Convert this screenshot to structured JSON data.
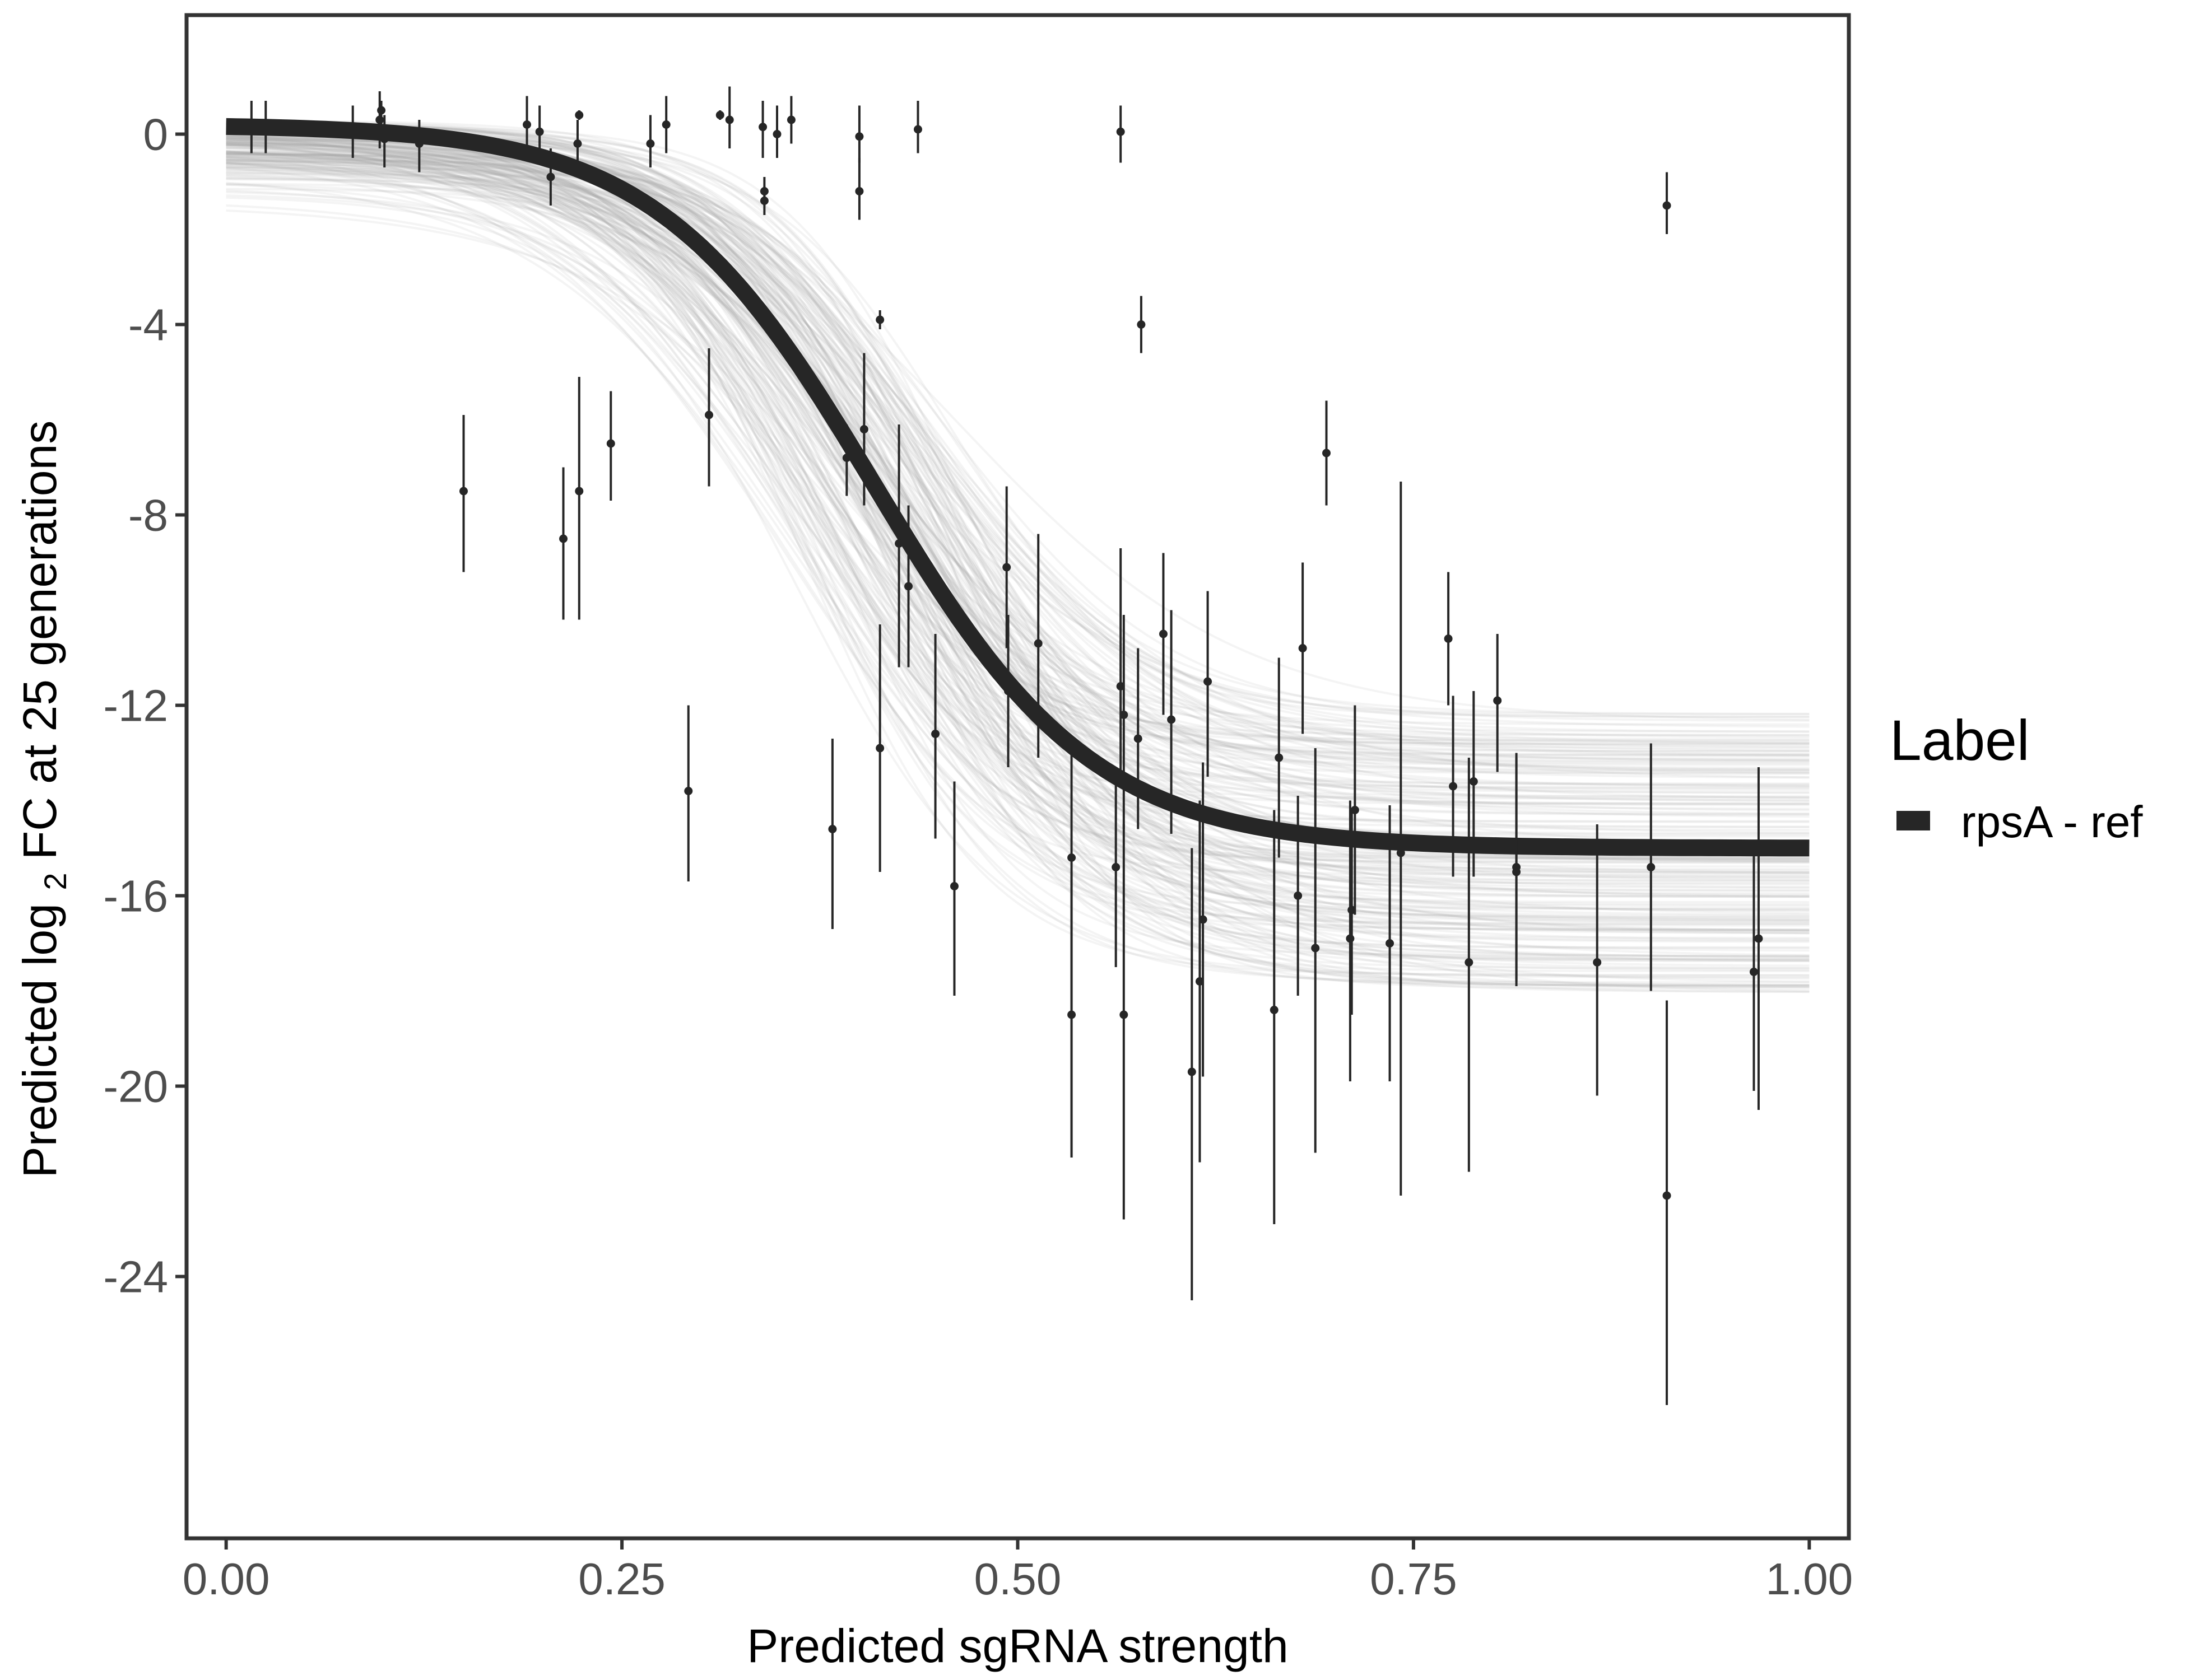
{
  "chart_data": {
    "type": "scatter",
    "xlabel": "Predicted sgRNA strength",
    "ylabel_parts": [
      "Predicted  log",
      "2",
      " FC at 25 generations"
    ],
    "xlim": [
      -0.025,
      1.025
    ],
    "ylim": [
      -29.5,
      2.5
    ],
    "x_ticks": [
      0,
      0.25,
      0.5,
      0.75,
      1
    ],
    "x_tick_labels": [
      "0.00",
      "0.25",
      "0.50",
      "0.75",
      "1.00"
    ],
    "y_ticks": [
      0,
      -4,
      -8,
      -12,
      -16,
      -20,
      -24
    ],
    "y_tick_labels": [
      "0",
      "-4",
      "-8",
      "-12",
      "-16",
      "-20",
      "-24"
    ],
    "grid": false,
    "legend": {
      "title": "Label",
      "placement": "right",
      "entries": [
        {
          "label": "rpsA - ref",
          "color": "#262626"
        }
      ]
    },
    "fit_curve": {
      "name": "rpsA - ref",
      "color": "#262626",
      "model": "logistic",
      "upper": 0.2,
      "lower": -15.0,
      "midpoint": 0.41,
      "slope": 14.5
    },
    "posterior_band": {
      "color": "#a6a6a6",
      "upper_range": [
        -1.7,
        0.3
      ],
      "lower_range": [
        -18.4,
        -11.8
      ],
      "midpoint_range": [
        0.35,
        0.47
      ],
      "slope_range": [
        11,
        19
      ]
    },
    "points": [
      {
        "x": 0.016,
        "y": 0.1,
        "lo": -0.4,
        "hi": 0.7
      },
      {
        "x": 0.025,
        "y": 0.1,
        "lo": -0.4,
        "hi": 0.7
      },
      {
        "x": 0.08,
        "y": 0.1,
        "lo": -0.5,
        "hi": 0.6
      },
      {
        "x": 0.097,
        "y": 0.3,
        "lo": -0.3,
        "hi": 0.9
      },
      {
        "x": 0.098,
        "y": 0.5,
        "lo": -0.1,
        "hi": 0.7
      },
      {
        "x": 0.1,
        "y": -0.1,
        "lo": -0.7,
        "hi": 0.4
      },
      {
        "x": 0.122,
        "y": -0.2,
        "lo": -0.8,
        "hi": 0.3
      },
      {
        "x": 0.15,
        "y": -7.5,
        "lo": -9.2,
        "hi": -5.9
      },
      {
        "x": 0.19,
        "y": 0.2,
        "lo": -0.3,
        "hi": 0.8
      },
      {
        "x": 0.198,
        "y": 0.05,
        "lo": -0.5,
        "hi": 0.6
      },
      {
        "x": 0.205,
        "y": -0.9,
        "lo": -1.5,
        "hi": -0.3
      },
      {
        "x": 0.213,
        "y": -8.5,
        "lo": -10.2,
        "hi": -7.0
      },
      {
        "x": 0.222,
        "y": -0.2,
        "lo": -0.7,
        "hi": 0.3
      },
      {
        "x": 0.223,
        "y": 0.4,
        "lo": 0.3,
        "hi": 0.5
      },
      {
        "x": 0.223,
        "y": -7.5,
        "lo": -10.2,
        "hi": -5.1
      },
      {
        "x": 0.243,
        "y": -6.5,
        "lo": -7.7,
        "hi": -5.4
      },
      {
        "x": 0.268,
        "y": -0.2,
        "lo": -0.7,
        "hi": 0.4
      },
      {
        "x": 0.278,
        "y": 0.2,
        "lo": -0.4,
        "hi": 0.8
      },
      {
        "x": 0.292,
        "y": -13.8,
        "lo": -15.7,
        "hi": -12.0
      },
      {
        "x": 0.305,
        "y": -5.9,
        "lo": -7.4,
        "hi": -4.5
      },
      {
        "x": 0.312,
        "y": 0.4,
        "lo": 0.3,
        "hi": 0.5
      },
      {
        "x": 0.318,
        "y": 0.3,
        "lo": -0.3,
        "hi": 1.0
      },
      {
        "x": 0.339,
        "y": 0.15,
        "lo": -0.5,
        "hi": 0.7
      },
      {
        "x": 0.34,
        "y": -1.2,
        "lo": -1.5,
        "hi": -0.9
      },
      {
        "x": 0.34,
        "y": -1.4,
        "lo": -1.7,
        "hi": -1.1
      },
      {
        "x": 0.348,
        "y": 0.0,
        "lo": -0.5,
        "hi": 0.6
      },
      {
        "x": 0.357,
        "y": 0.3,
        "lo": -0.2,
        "hi": 0.8
      },
      {
        "x": 0.383,
        "y": -14.6,
        "lo": -16.7,
        "hi": -12.7
      },
      {
        "x": 0.392,
        "y": -6.8,
        "lo": -7.6,
        "hi": -6.1
      },
      {
        "x": 0.4,
        "y": -0.05,
        "lo": -0.6,
        "hi": 0.6
      },
      {
        "x": 0.4,
        "y": -1.2,
        "lo": -1.8,
        "hi": -0.5
      },
      {
        "x": 0.403,
        "y": -6.2,
        "lo": -7.8,
        "hi": -4.6
      },
      {
        "x": 0.413,
        "y": -12.9,
        "lo": -15.5,
        "hi": -10.3
      },
      {
        "x": 0.413,
        "y": -3.9,
        "lo": -4.1,
        "hi": -3.7
      },
      {
        "x": 0.425,
        "y": -8.6,
        "lo": -11.2,
        "hi": -6.1
      },
      {
        "x": 0.431,
        "y": -9.5,
        "lo": -11.2,
        "hi": -7.8
      },
      {
        "x": 0.437,
        "y": 0.1,
        "lo": -0.4,
        "hi": 0.7
      },
      {
        "x": 0.448,
        "y": -12.6,
        "lo": -14.8,
        "hi": -10.5
      },
      {
        "x": 0.46,
        "y": -15.8,
        "lo": -18.1,
        "hi": -13.6
      },
      {
        "x": 0.493,
        "y": -9.1,
        "lo": -10.8,
        "hi": -7.4
      },
      {
        "x": 0.494,
        "y": -11.7,
        "lo": -13.3,
        "hi": -10.1
      },
      {
        "x": 0.513,
        "y": -10.7,
        "lo": -13.1,
        "hi": -8.4
      },
      {
        "x": 0.534,
        "y": -15.2,
        "lo": -21.5,
        "hi": -12.8
      },
      {
        "x": 0.534,
        "y": -18.5,
        "lo": -21.5,
        "hi": -15.5
      },
      {
        "x": 0.562,
        "y": -15.4,
        "lo": -17.5,
        "hi": -13.4
      },
      {
        "x": 0.565,
        "y": -11.6,
        "lo": -13.5,
        "hi": -8.7
      },
      {
        "x": 0.565,
        "y": 0.05,
        "lo": -0.6,
        "hi": 0.6
      },
      {
        "x": 0.567,
        "y": -18.5,
        "lo": -22.8,
        "hi": -14.5
      },
      {
        "x": 0.567,
        "y": -12.2,
        "lo": -14.6,
        "hi": -10.1
      },
      {
        "x": 0.576,
        "y": -12.7,
        "lo": -14.6,
        "hi": -10.8
      },
      {
        "x": 0.578,
        "y": -4.0,
        "lo": -4.6,
        "hi": -3.4
      },
      {
        "x": 0.592,
        "y": -10.5,
        "lo": -12.2,
        "hi": -8.8
      },
      {
        "x": 0.597,
        "y": -12.3,
        "lo": -14.7,
        "hi": -10.0
      },
      {
        "x": 0.61,
        "y": -19.7,
        "lo": -24.5,
        "hi": -15.0
      },
      {
        "x": 0.615,
        "y": -17.8,
        "lo": -21.6,
        "hi": -14.0
      },
      {
        "x": 0.617,
        "y": -16.5,
        "lo": -19.8,
        "hi": -13.2
      },
      {
        "x": 0.62,
        "y": -11.5,
        "lo": -13.5,
        "hi": -9.6
      },
      {
        "x": 0.662,
        "y": -18.4,
        "lo": -22.9,
        "hi": -14.2
      },
      {
        "x": 0.665,
        "y": -13.1,
        "lo": -15.2,
        "hi": -11.0
      },
      {
        "x": 0.677,
        "y": -16.0,
        "lo": -18.1,
        "hi": -13.9
      },
      {
        "x": 0.68,
        "y": -10.8,
        "lo": -12.6,
        "hi": -9.0
      },
      {
        "x": 0.688,
        "y": -17.1,
        "lo": -21.4,
        "hi": -12.9
      },
      {
        "x": 0.695,
        "y": -6.7,
        "lo": -7.8,
        "hi": -5.6
      },
      {
        "x": 0.71,
        "y": -16.9,
        "lo": -19.9,
        "hi": -14.0
      },
      {
        "x": 0.711,
        "y": -16.3,
        "lo": -18.5,
        "hi": -14.2
      },
      {
        "x": 0.713,
        "y": -14.2,
        "lo": -16.4,
        "hi": -12.0
      },
      {
        "x": 0.735,
        "y": -17.0,
        "lo": -19.9,
        "hi": -14.1
      },
      {
        "x": 0.742,
        "y": -15.1,
        "lo": -22.3,
        "hi": -7.3
      },
      {
        "x": 0.772,
        "y": -10.6,
        "lo": -12.0,
        "hi": -9.2
      },
      {
        "x": 0.775,
        "y": -13.7,
        "lo": -15.6,
        "hi": -11.8
      },
      {
        "x": 0.785,
        "y": -17.4,
        "lo": -21.8,
        "hi": -13.1
      },
      {
        "x": 0.788,
        "y": -13.6,
        "lo": -15.6,
        "hi": -11.7
      },
      {
        "x": 0.803,
        "y": -11.9,
        "lo": -13.4,
        "hi": -10.5
      },
      {
        "x": 0.815,
        "y": -15.4,
        "lo": -17.9,
        "hi": -13.0
      },
      {
        "x": 0.815,
        "y": -15.5,
        "lo": -17.8,
        "hi": -13.1
      },
      {
        "x": 0.866,
        "y": -17.4,
        "lo": -20.2,
        "hi": -14.5
      },
      {
        "x": 0.9,
        "y": -15.4,
        "lo": -18.0,
        "hi": -12.8
      },
      {
        "x": 0.91,
        "y": -1.5,
        "lo": -2.1,
        "hi": -0.8
      },
      {
        "x": 0.91,
        "y": -22.3,
        "lo": -26.7,
        "hi": -18.2
      },
      {
        "x": 0.965,
        "y": -17.6,
        "lo": -20.1,
        "hi": -15.0
      },
      {
        "x": 0.968,
        "y": -16.9,
        "lo": -20.5,
        "hi": -13.3
      }
    ]
  }
}
